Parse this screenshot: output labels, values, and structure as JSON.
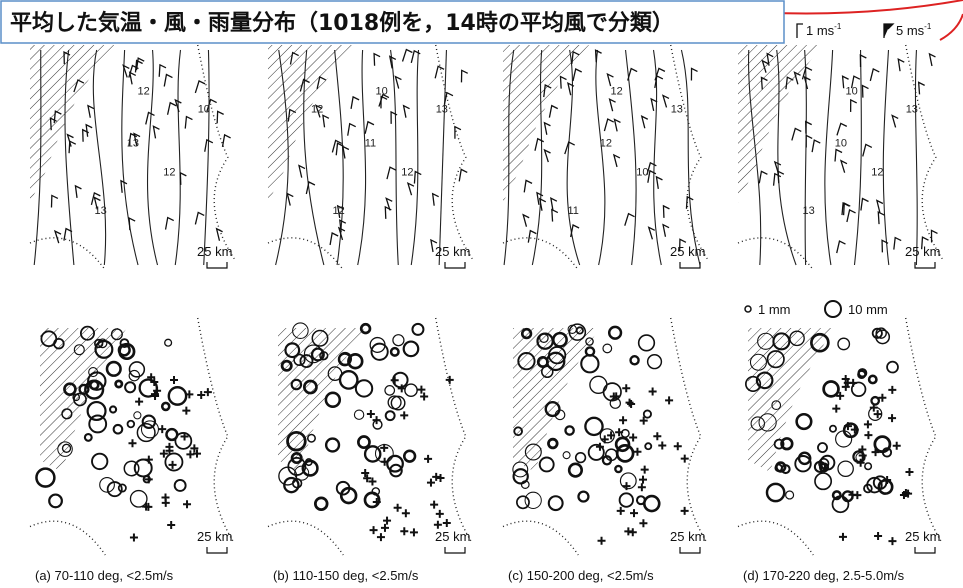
{
  "header": {
    "title": "平均した気温・風・雨量分布（1018例を，14時の平均風で分類）"
  },
  "wind_legend": {
    "small": "1 ms",
    "small_sup": "-1",
    "large": "5 ms",
    "large_sup": "-1"
  },
  "rain_legend": {
    "small": "1 mm",
    "large": "10 mm"
  },
  "panels": [
    {
      "contour_labels": [
        "13",
        "12",
        "13",
        "10",
        "12"
      ],
      "top_scale": "25 km",
      "bottom_scale": "25 km",
      "caption": "(a) 70-110 deg, <2.5m/s"
    },
    {
      "contour_labels": [
        "11",
        "12",
        "12",
        "13",
        "10",
        "12"
      ],
      "top_scale": "25 km",
      "bottom_scale": "25 km",
      "caption": "(b) 110-150 deg, <2.5m/s"
    },
    {
      "contour_labels": [
        "12",
        "10",
        "11",
        "13",
        "12"
      ],
      "top_scale": "25 km",
      "bottom_scale": "25 km",
      "caption": "(c) 150-200 deg, <2.5m/s"
    },
    {
      "contour_labels": [
        "10",
        "12",
        "13",
        "13",
        "10"
      ],
      "top_scale": "25 km",
      "bottom_scale": "25 km",
      "caption": "(d) 170-220 deg, 2.5-5.0m/s"
    }
  ]
}
